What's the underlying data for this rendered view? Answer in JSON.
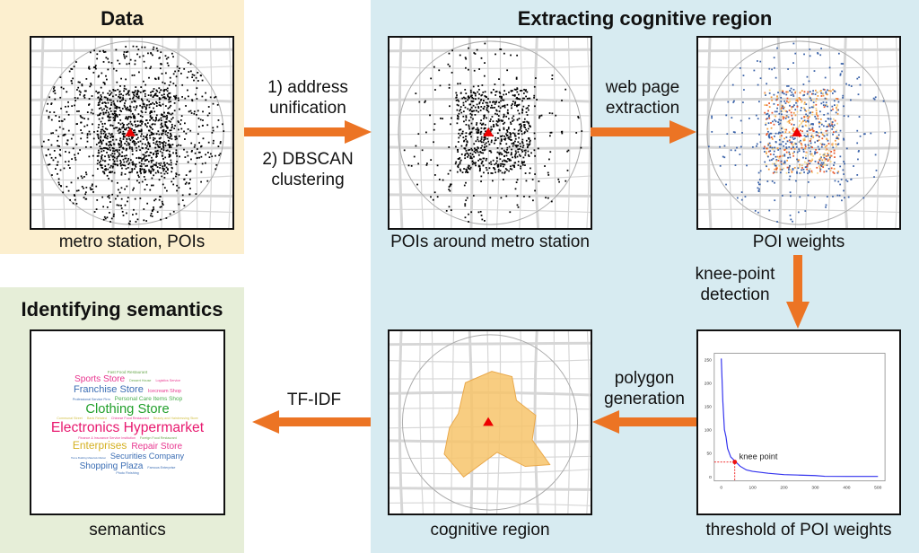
{
  "arrow_color": "#ec7424",
  "panels": {
    "data": {
      "title": "Data",
      "caption": "metro station, POIs",
      "bg": "#fcefcf"
    },
    "extract": {
      "title": "Extracting cognitive region",
      "bg": "#d7ebf1",
      "captions": {
        "pois": "POIs around metro station",
        "weights": "POI weights",
        "threshold": "threshold of POI weights",
        "region": "cognitive region"
      }
    },
    "semantics": {
      "title": "Identifying semantics",
      "caption": "semantics",
      "bg": "#e6eed8"
    }
  },
  "steps": {
    "s1a": "1) address",
    "s1b": "unification",
    "s2a": "2) DBSCAN",
    "s2b": "clustering",
    "web_a": "web page",
    "web_b": "extraction",
    "knee_a": "knee-point",
    "knee_b": "detection",
    "poly_a": "polygon",
    "poly_b": "generation",
    "tfidf": "TF-IDF"
  },
  "wordcloud": [
    {
      "text": "Fast Food Restaurant",
      "color": "#6aa84f",
      "size": 5
    },
    {
      "text": "Sports Store",
      "color": "#e8368f",
      "size": 11
    },
    {
      "text": "Dessert House",
      "color": "#6aa84f",
      "size": 4
    },
    {
      "text": "Logistics Service",
      "color": "#e8368f",
      "size": 4
    },
    {
      "text": "Franchise Store",
      "color": "#3c6eb4",
      "size": 12
    },
    {
      "text": "Icecream Shop",
      "color": "#e8368f",
      "size": 6
    },
    {
      "text": "Professional Service Firm",
      "color": "#3c6eb4",
      "size": 4
    },
    {
      "text": "Personal Care Items Shop",
      "color": "#4caf50",
      "size": 7
    },
    {
      "text": "Clothing Store",
      "color": "#22a02c",
      "size": 16
    },
    {
      "text": "Communal Street",
      "color": "#d4c24a",
      "size": 4
    },
    {
      "text": "Bank Related",
      "color": "#d4c24a",
      "size": 4
    },
    {
      "text": "Chinese Food Restaurant",
      "color": "#e8368f",
      "size": 4
    },
    {
      "text": "Beauty and Hairdressing Store",
      "color": "#d4c24a",
      "size": 4
    },
    {
      "text": "Electronics Hypermarket",
      "color": "#e8196f",
      "size": 17
    },
    {
      "text": "Finance & Insurance Service Institution",
      "color": "#e8368f",
      "size": 4
    },
    {
      "text": "Foreign Food Restaurant",
      "color": "#6aa84f",
      "size": 4
    },
    {
      "text": "Enterprises",
      "color": "#d4b020",
      "size": 13
    },
    {
      "text": "Repair Store",
      "color": "#e8368f",
      "size": 11
    },
    {
      "text": "Home Building Materials Market",
      "color": "#3c6eb4",
      "size": 3
    },
    {
      "text": "Securities Company",
      "color": "#3c6eb4",
      "size": 10
    },
    {
      "text": "Shopping Plaza",
      "color": "#3c6eb4",
      "size": 11
    },
    {
      "text": "Famous Enterprise",
      "color": "#3c6eb4",
      "size": 4
    },
    {
      "text": "Photo Finishing",
      "color": "#3c6eb4",
      "size": 4
    }
  ],
  "chart_data": {
    "type": "line",
    "xlim": [
      0,
      500
    ],
    "ylim": [
      0,
      250
    ],
    "xticks": [
      0,
      100,
      200,
      300,
      400,
      500
    ],
    "yticks": [
      0,
      50,
      100,
      150,
      200,
      250
    ],
    "x": [
      0,
      5,
      10,
      15,
      20,
      30,
      45,
      60,
      80,
      100,
      150,
      200,
      250,
      300,
      330,
      400,
      500
    ],
    "y": [
      252,
      160,
      100,
      85,
      60,
      42,
      32,
      22,
      14,
      11,
      7,
      4,
      3,
      2,
      0.5,
      0.3,
      0.2
    ],
    "annotation": {
      "text": "knee point",
      "x": 43,
      "y": 31
    },
    "line_color": "#3333ee",
    "knee_color": "#ee1111"
  }
}
